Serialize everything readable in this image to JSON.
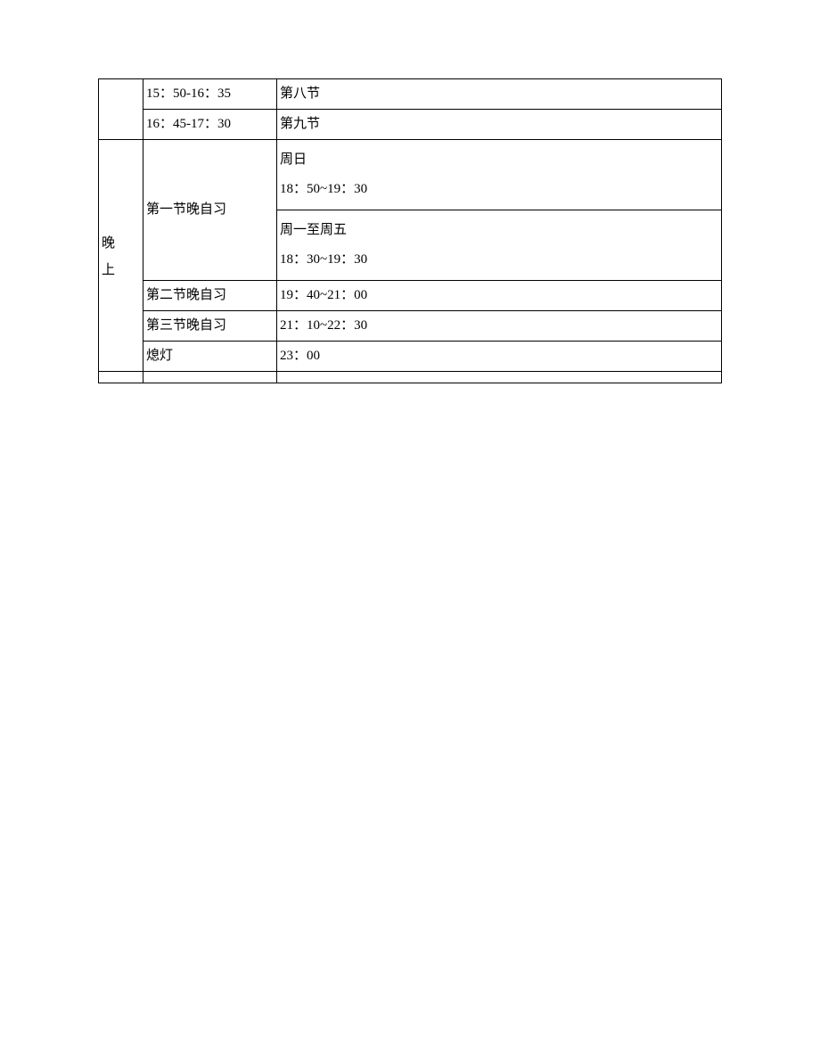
{
  "table": {
    "columns": {
      "col1_width": 50,
      "col2_width": 150,
      "col3_width": "auto"
    },
    "border_color": "#000000",
    "text_color": "#000000",
    "font_size": 15,
    "background_color": "#ffffff",
    "rows": {
      "r1": {
        "time": "15：50-16：35",
        "period": "第八节"
      },
      "r2": {
        "time": "16：45-17：30",
        "period": "第九节"
      },
      "evening_label_line1": "晚",
      "evening_label_line2": "上",
      "r3": {
        "label": "第一节晚自习",
        "sunday_label": "周日",
        "sunday_time": "18：50~19：30",
        "weekday_label": "周一至周五",
        "weekday_time": "18：30~19：30"
      },
      "r4": {
        "label": "第二节晚自习",
        "time": "19：40~21：00"
      },
      "r5": {
        "label": "第三节晚自习",
        "time": "21：10~22：30"
      },
      "r6": {
        "label": "熄灯",
        "time": "23：00"
      }
    }
  }
}
